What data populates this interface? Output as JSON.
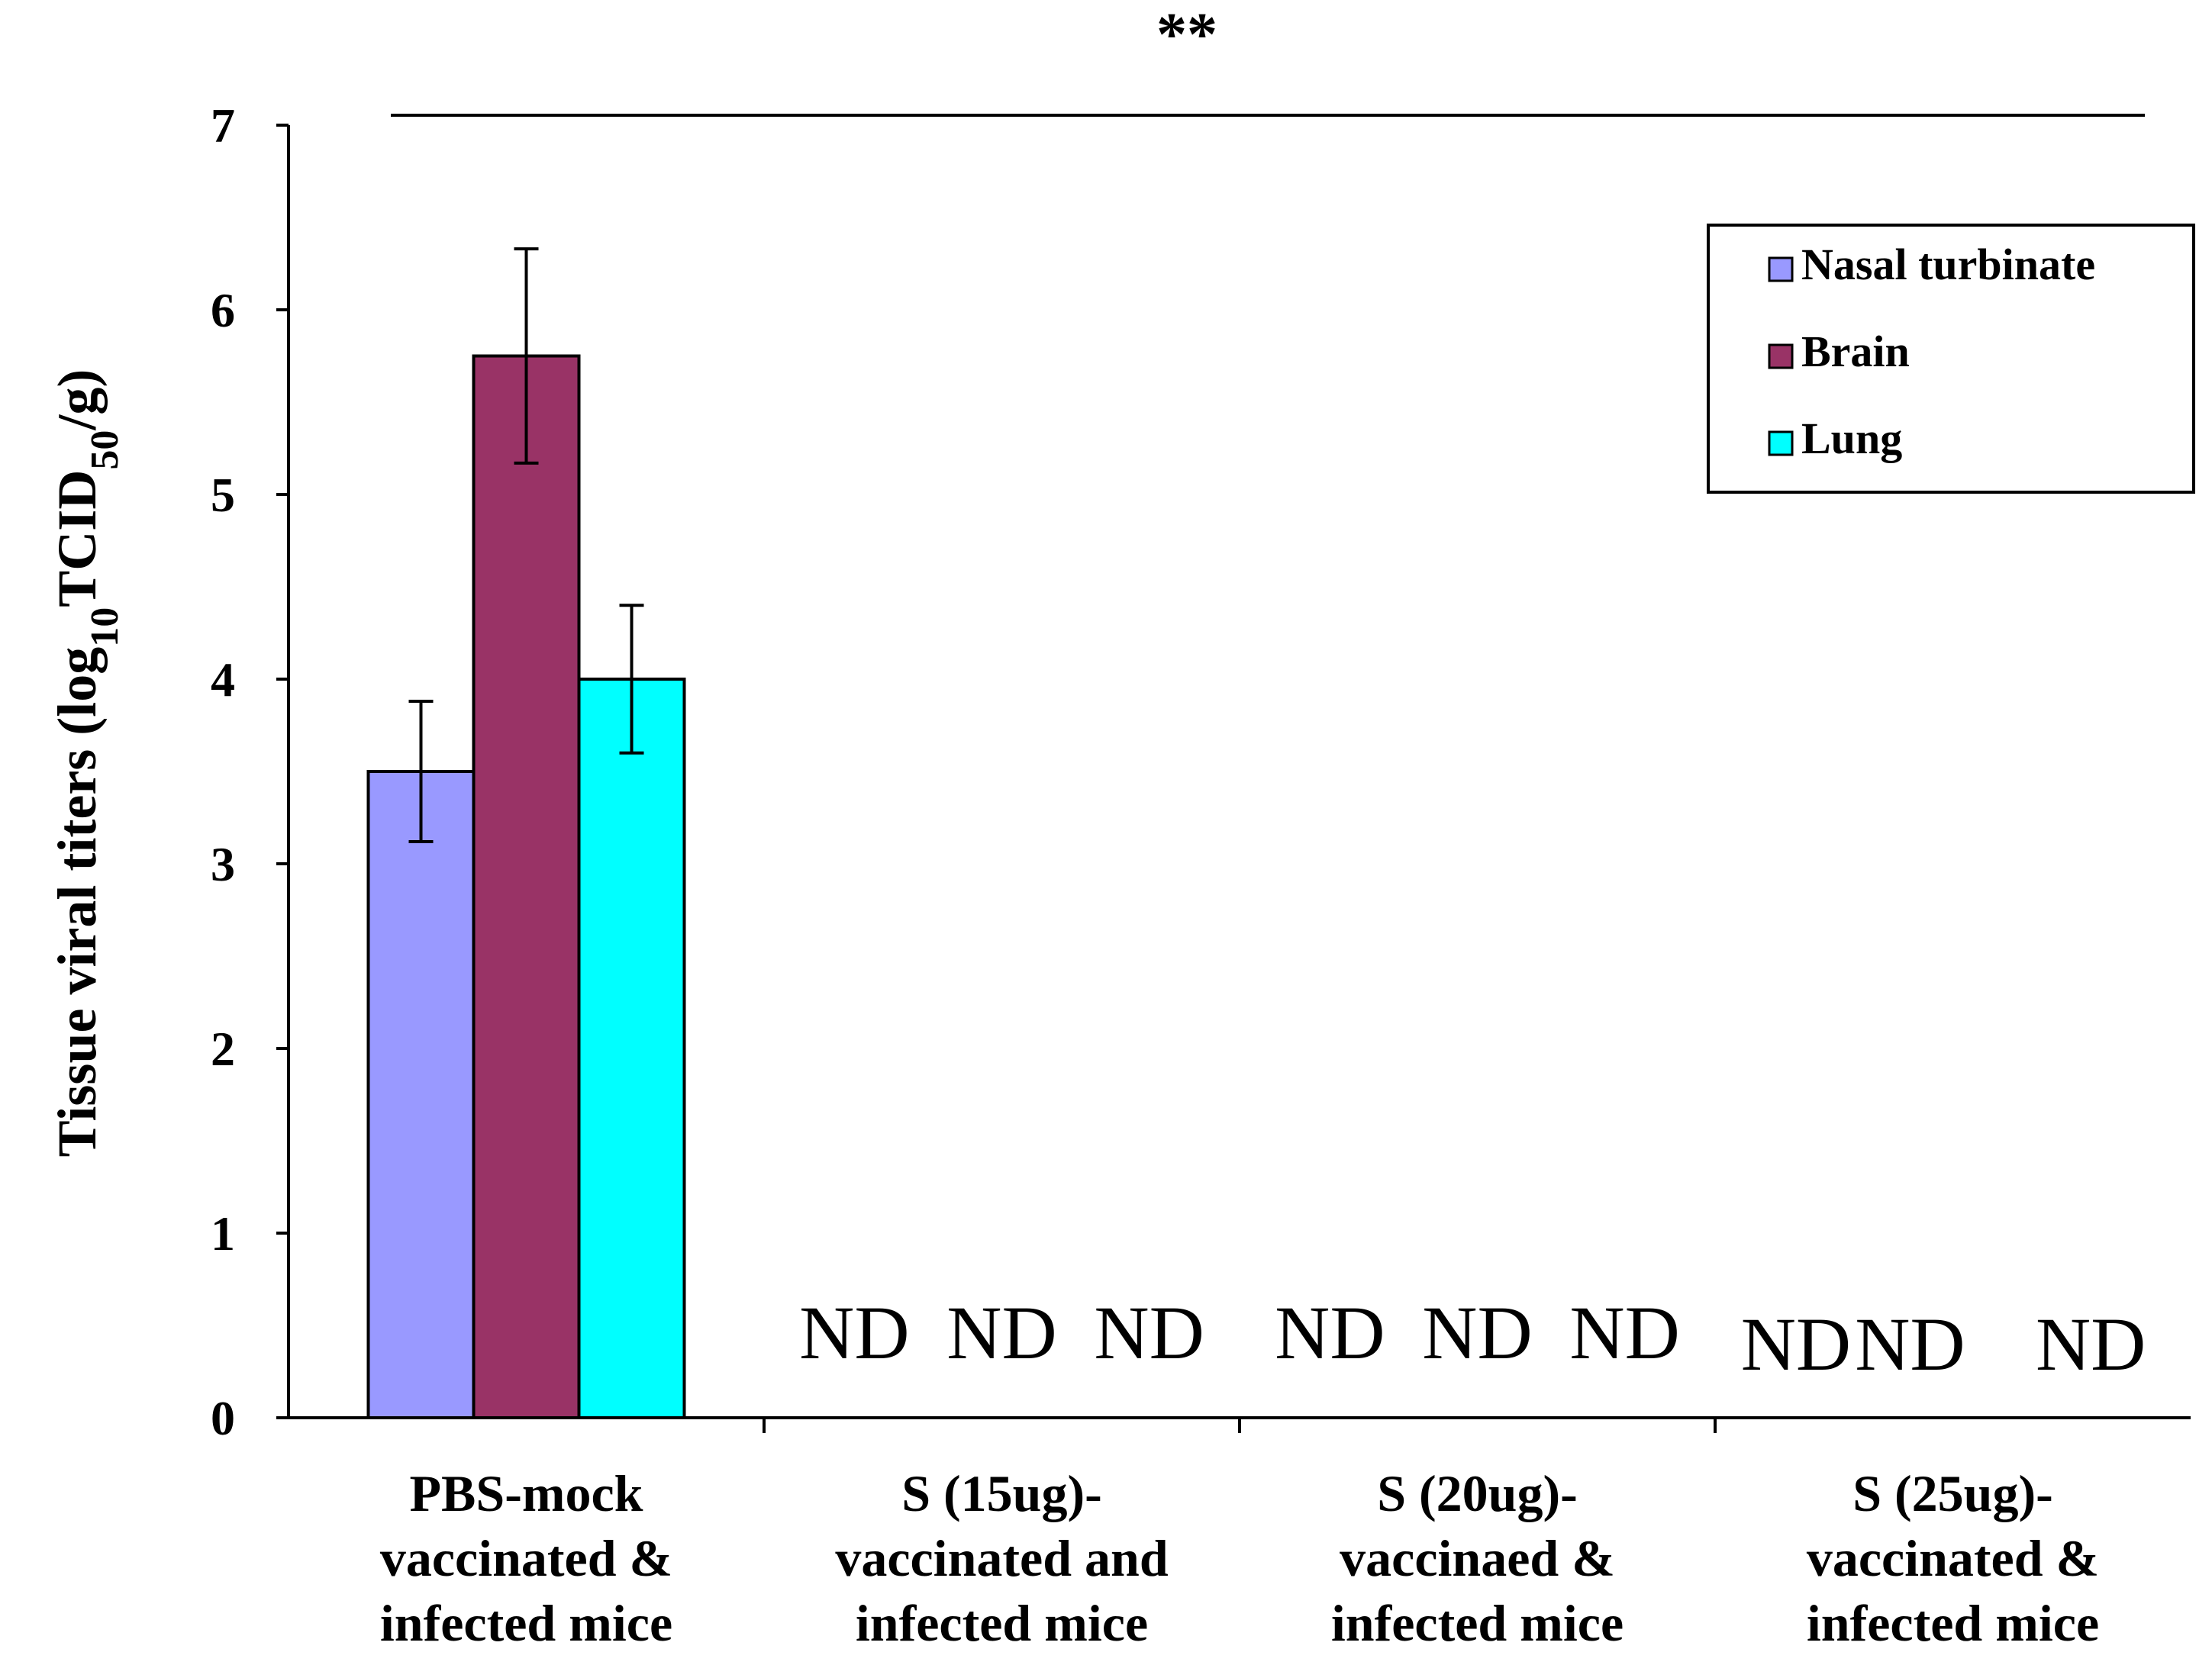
{
  "chart_data": {
    "type": "bar",
    "title": "",
    "xlabel": "",
    "ylabel": {
      "prefix": "Tissue viral titers (log",
      "sub1": "10",
      "mid": "TCID",
      "sub2": "50",
      "suffix": "/g)"
    },
    "ylim": [
      0,
      7
    ],
    "yticks": [
      "0",
      "1",
      "2",
      "3",
      "4",
      "5",
      "6",
      "7"
    ],
    "categories": [
      [
        "PBS-mock",
        "vaccinated &",
        "infected mice"
      ],
      [
        "S (15ug)-",
        "vaccinated and",
        "infected mice"
      ],
      [
        "S (20ug)-",
        "vaccinaed &",
        "infected mice"
      ],
      [
        "S (25ug)-",
        "vaccinated &",
        "infected mice"
      ]
    ],
    "series": [
      {
        "name": "Nasal turbinate",
        "color": "#9999ff",
        "values": [
          3.5,
          null,
          null,
          null
        ],
        "errors": [
          0.38,
          null,
          null,
          null
        ]
      },
      {
        "name": "Brain",
        "color": "#993366",
        "values": [
          5.75,
          null,
          null,
          null
        ],
        "errors": [
          0.58,
          null,
          null,
          null
        ]
      },
      {
        "name": "Lung",
        "color": "#00ffff",
        "values": [
          4.0,
          null,
          null,
          null
        ],
        "errors": [
          0.4,
          null,
          null,
          null
        ]
      }
    ],
    "not_detected_label": "ND",
    "significance": "**",
    "legend_position": "top-right"
  }
}
